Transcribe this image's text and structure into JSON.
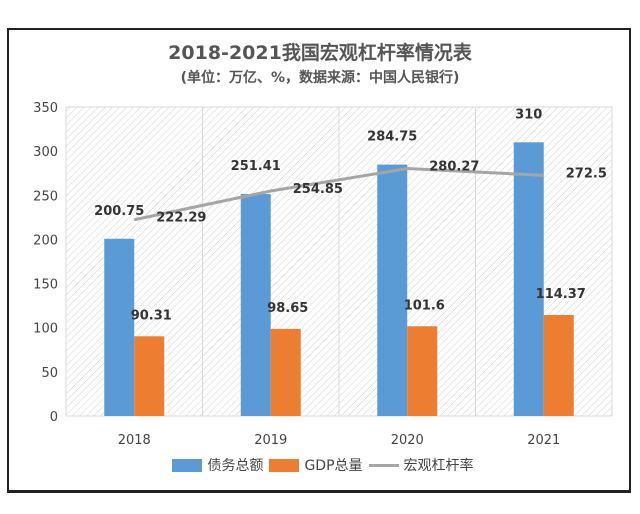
{
  "chart_data": {
    "type": "bar",
    "title": "2018-2021我国宏观杠杆率情况表",
    "subtitle": "(单位：万亿、%，数据来源：中国人民银行)",
    "categories": [
      "2018",
      "2019",
      "2020",
      "2021"
    ],
    "ylim": [
      0,
      350
    ],
    "yticks": [
      0,
      50,
      100,
      150,
      200,
      250,
      300,
      350
    ],
    "grid": false,
    "legend_position": "bottom",
    "series": [
      {
        "name": "债务总额",
        "type": "bar",
        "color": "#5b9bd5",
        "values": [
          200.75,
          251.41,
          284.75,
          310
        ],
        "labels": [
          "200.75",
          "251.41",
          "284.75",
          "310"
        ]
      },
      {
        "name": "GDP总量",
        "type": "bar",
        "color": "#ed7d31",
        "values": [
          90.31,
          98.65,
          101.6,
          114.37
        ],
        "labels": [
          "90.31",
          "98.65",
          "101.6",
          "114.37"
        ]
      },
      {
        "name": "宏观杠杆率",
        "type": "line",
        "color": "#a5a5a5",
        "values": [
          222.29,
          254.85,
          280.27,
          272.5
        ],
        "labels": [
          "222.29",
          "254.85",
          "280.27",
          "272.5"
        ]
      }
    ]
  }
}
